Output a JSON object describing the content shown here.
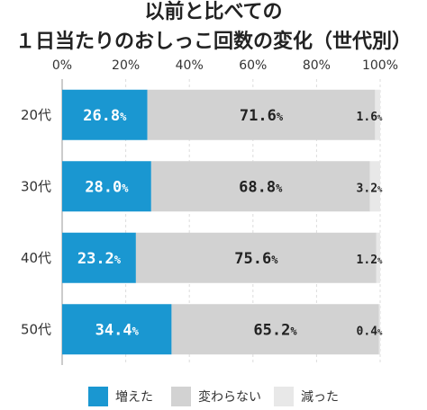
{
  "chart_data": {
    "type": "bar",
    "orientation": "horizontal",
    "stacked": true,
    "title": "以前と比べての\n１日当たりのおしっこ回数の変化（世代別）",
    "xlabel": "",
    "ylabel": "",
    "xlim": [
      0,
      100
    ],
    "x_ticks": [
      "0%",
      "20%",
      "40%",
      "60%",
      "80%",
      "100%"
    ],
    "grid": true,
    "legend_position": "bottom",
    "categories": [
      "20代",
      "30代",
      "40代",
      "50代"
    ],
    "series": [
      {
        "name": "増えた",
        "color": "#1a97d1",
        "label_color": "#ffffff",
        "values": [
          26.8,
          28.0,
          23.2,
          34.4
        ]
      },
      {
        "name": "変わらない",
        "color": "#d2d2d2",
        "label_color": "#222222",
        "values": [
          71.6,
          68.8,
          75.6,
          65.2
        ]
      },
      {
        "name": "減った",
        "color": "#e8e8e8",
        "label_color": "#222222",
        "values": [
          1.6,
          3.2,
          1.2,
          0.4
        ]
      }
    ]
  }
}
